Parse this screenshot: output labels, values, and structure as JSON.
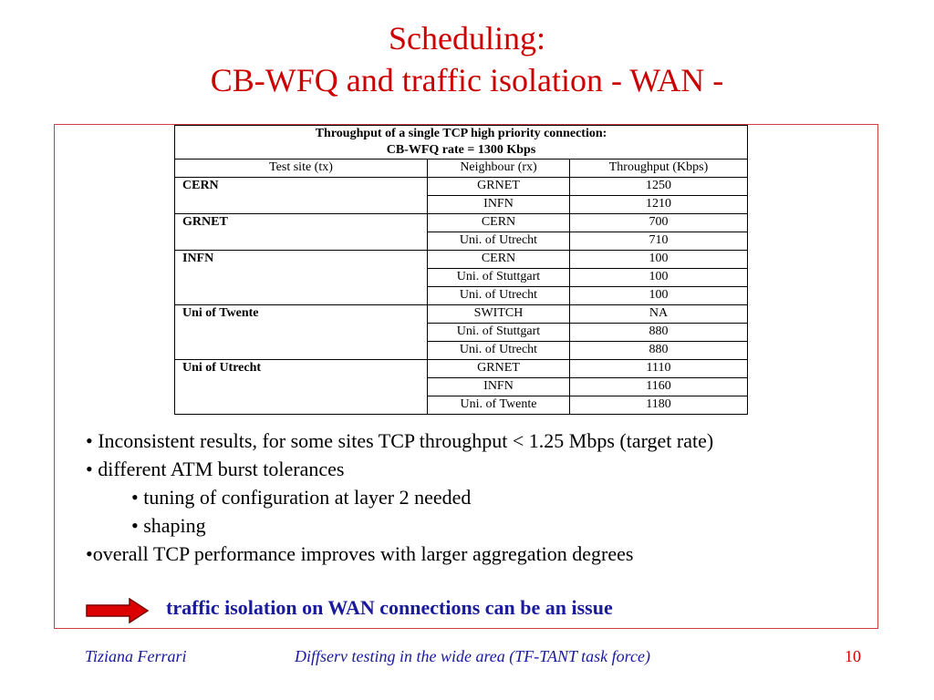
{
  "title": {
    "line1": "Scheduling:",
    "line2": "CB-WFQ and traffic isolation - WAN -"
  },
  "table": {
    "caption_line1": "Throughput of a single TCP  high priority connection:",
    "caption_line2": "CB-WFQ rate = 1300 Kbps",
    "headers": [
      "Test site (tx)",
      "Neighbour (rx)",
      "Throughput (Kbps)"
    ],
    "groups": [
      {
        "site": "CERN",
        "rows": [
          [
            "GRNET",
            "1250"
          ],
          [
            "INFN",
            "1210"
          ]
        ]
      },
      {
        "site": "GRNET",
        "rows": [
          [
            "CERN",
            "700"
          ],
          [
            "Uni. of Utrecht",
            "710"
          ]
        ]
      },
      {
        "site": "INFN",
        "rows": [
          [
            "CERN",
            "100"
          ],
          [
            "Uni. of Stuttgart",
            "100"
          ],
          [
            "Uni. of Utrecht",
            "100"
          ]
        ]
      },
      {
        "site": "Uni of Twente",
        "rows": [
          [
            "SWITCH",
            "NA"
          ],
          [
            "Uni. of Stuttgart",
            "880"
          ],
          [
            "Uni. of Utrecht",
            "880"
          ]
        ]
      },
      {
        "site": "Uni of Utrecht",
        "rows": [
          [
            "GRNET",
            "1110"
          ],
          [
            "INFN",
            "1160"
          ],
          [
            "Uni. of Twente",
            "1180"
          ]
        ]
      }
    ]
  },
  "bullets": [
    {
      "text": "• Inconsistent results, for some sites TCP throughput < 1.25 Mbps (target rate)",
      "indent": false
    },
    {
      "text": "• different ATM burst tolerances",
      "indent": false
    },
    {
      "text": "• tuning of configuration at layer 2 needed",
      "indent": true
    },
    {
      "text": "• shaping",
      "indent": true
    },
    {
      "text": "•overall TCP performance improves with larger aggregation degrees",
      "indent": false
    }
  ],
  "highlight": "traffic isolation on WAN connections can be an issue",
  "footer": {
    "author": "Tiziana Ferrari",
    "talk": "Diffserv testing in the wide area  (TF-TANT task force)",
    "page": "10"
  },
  "colors": {
    "title": "#cc0000",
    "frame": "#d04040",
    "highlight": "#1a1a9c",
    "arrow": "#dd0000"
  }
}
